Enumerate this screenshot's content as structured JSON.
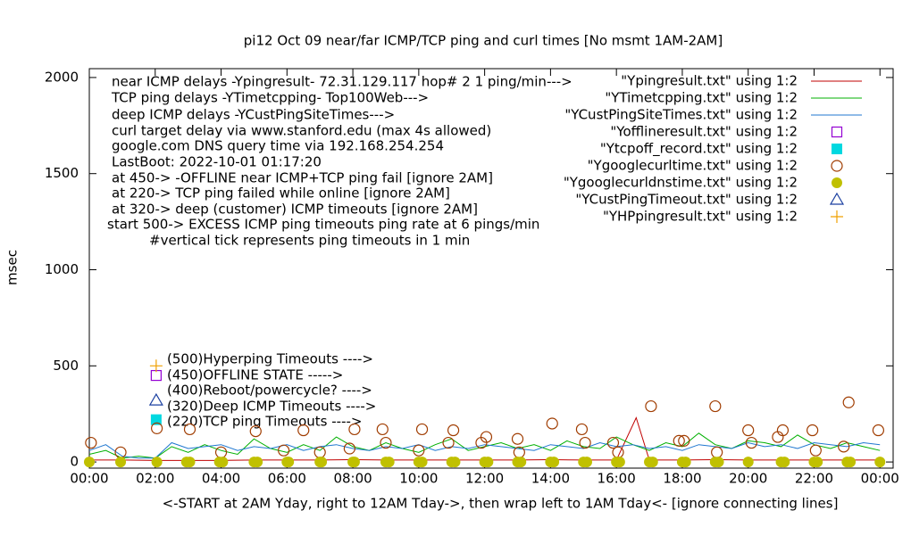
{
  "chart_data": {
    "type": "line",
    "title": "pi12 Oct 09  near/far ICMP/TCP ping and curl times [No msmt 1AM-2AM]",
    "xlabel": "<-START at 2AM Yday, right to 12AM Tday->, then wrap left to 1AM Tday<- [ignore connecting lines]",
    "ylabel": "msec",
    "xlim": [
      0,
      24.4
    ],
    "ylim": [
      -32,
      2046
    ],
    "xticks": [
      {
        "value": 0,
        "label": "00:00"
      },
      {
        "value": 2,
        "label": "02:00"
      },
      {
        "value": 4,
        "label": "04:00"
      },
      {
        "value": 6,
        "label": "06:00"
      },
      {
        "value": 8,
        "label": "08:00"
      },
      {
        "value": 10,
        "label": "10:00"
      },
      {
        "value": 12,
        "label": "12:00"
      },
      {
        "value": 14,
        "label": "14:00"
      },
      {
        "value": 16,
        "label": "16:00"
      },
      {
        "value": 18,
        "label": "18:00"
      },
      {
        "value": 20,
        "label": "20:00"
      },
      {
        "value": 22,
        "label": "22:00"
      },
      {
        "value": 24,
        "label": "00:00"
      }
    ],
    "yticks": [
      0,
      500,
      1000,
      1500,
      2000
    ],
    "legend": "top-right",
    "annotations": [
      "near ICMP delays -Ypingresult- 72.31.129.117 hop# 2  1 ping/min--->",
      "TCP ping delays -YTimetcpping- Top100Web--->",
      "deep ICMP delays -YCustPingSiteTimes--->",
      "curl target delay via www.stanford.edu (max 4s allowed)",
      "google.com DNS query time via 192.168.254.254",
      "LastBoot: 2022-10-01 01:17:20",
      "at 450-> -OFFLINE near ICMP+TCP ping fail [ignore 2AM]",
      "at 220-> TCP ping failed while online [ignore 2AM]",
      "at 320-> deep (customer) ICMP timeouts [ignore 2AM]",
      "start 500-> EXCESS ICMP ping timeouts ping rate at 6 pings/min",
      "#vertical tick represents ping timeouts in 1 min",
      "(500)Hyperping Timeouts ---->",
      "(450)OFFLINE STATE ----->",
      "(400)Reboot/powercycle? ---->",
      "(320)Deep ICMP Timeouts ---->",
      "(220)TCP ping Timeouts ---->"
    ],
    "series": [
      {
        "name": "\"Ypingresult.txt\" using 1:2",
        "color": "#c00000",
        "style": "line",
        "x": [
          0,
          1,
          2,
          3,
          4,
          5,
          6,
          7,
          8,
          9,
          10,
          11,
          12,
          13,
          14,
          15,
          16,
          16.6,
          17,
          18,
          19,
          20,
          21,
          22,
          23,
          24
        ],
        "values": [
          10,
          10,
          8,
          8,
          8,
          10,
          10,
          10,
          12,
          10,
          10,
          10,
          10,
          10,
          12,
          10,
          10,
          230,
          10,
          10,
          12,
          10,
          10,
          10,
          10,
          10
        ]
      },
      {
        "name": "\"YTimetcpping.txt\" using 1:2",
        "color": "#00b000",
        "style": "line",
        "x": [
          0,
          0.5,
          1,
          1.5,
          2,
          2.5,
          3,
          3.5,
          4,
          4.5,
          5,
          5.5,
          6,
          6.5,
          7,
          7.5,
          8,
          8.5,
          9,
          9.5,
          10,
          10.5,
          11,
          11.5,
          12,
          12.5,
          13,
          13.5,
          14,
          14.5,
          15,
          15.5,
          16,
          16.5,
          17,
          17.5,
          18,
          18.5,
          19,
          19.5,
          20,
          20.5,
          21,
          21.5,
          22,
          22.5,
          23,
          23.5,
          24
        ],
        "values": [
          40,
          60,
          20,
          30,
          20,
          80,
          50,
          90,
          60,
          40,
          120,
          70,
          50,
          90,
          60,
          130,
          80,
          60,
          100,
          70,
          50,
          90,
          120,
          60,
          80,
          100,
          70,
          90,
          60,
          110,
          80,
          70,
          130,
          90,
          60,
          100,
          80,
          150,
          90,
          70,
          110,
          100,
          80,
          140,
          90,
          70,
          100,
          80,
          60
        ]
      },
      {
        "name": "\"YCustPingSiteTimes.txt\" using 1:2",
        "color": "#1f77d0",
        "style": "line",
        "x": [
          0,
          0.5,
          1,
          1.5,
          2,
          2.5,
          3,
          3.5,
          4,
          4.5,
          5,
          5.5,
          6,
          6.5,
          7,
          7.5,
          8,
          8.5,
          9,
          9.5,
          10,
          10.5,
          11,
          11.5,
          12,
          12.5,
          13,
          13.5,
          14,
          14.5,
          15,
          15.5,
          16,
          16.5,
          17,
          17.5,
          18,
          18.5,
          19,
          19.5,
          20,
          20.5,
          21,
          21.5,
          22,
          22.5,
          23,
          23.5,
          24
        ],
        "values": [
          60,
          90,
          30,
          20,
          20,
          100,
          70,
          80,
          90,
          60,
          80,
          70,
          90,
          60,
          80,
          90,
          70,
          60,
          80,
          70,
          90,
          60,
          80,
          70,
          90,
          80,
          70,
          60,
          90,
          80,
          70,
          100,
          80,
          90,
          70,
          80,
          60,
          90,
          80,
          70,
          100,
          80,
          90,
          70,
          100,
          90,
          80,
          100,
          90
        ]
      },
      {
        "name": "\"Yofflineresult.txt\" using 1:2",
        "color": "#9400d3",
        "style": "points",
        "marker": "square-open",
        "x": [
          2.03
        ],
        "values": [
          450
        ]
      },
      {
        "name": "\"Ytcpoff_record.txt\" using 1:2",
        "color": "#00d8e0",
        "style": "points",
        "marker": "square-filled",
        "x": [
          2.03
        ],
        "values": [
          220
        ]
      },
      {
        "name": "\"Ygooglecurltime.txt\" using 1:2",
        "color": "#a03c00",
        "style": "points",
        "marker": "circle-open",
        "x": [
          0.05,
          0.95,
          2.05,
          3.05,
          4.0,
          5.05,
          5.9,
          6.5,
          7.0,
          7.9,
          8.05,
          8.9,
          9.0,
          10.0,
          10.1,
          10.9,
          11.05,
          11.9,
          12.05,
          13.0,
          13.05,
          14.05,
          14.95,
          15.05,
          15.9,
          16.05,
          17.05,
          17.9,
          18.05,
          19.0,
          19.05,
          20.0,
          20.1,
          20.9,
          21.05,
          21.95,
          22.05,
          22.9,
          23.05,
          23.95
        ],
        "values": [
          100,
          50,
          175,
          170,
          50,
          160,
          60,
          165,
          50,
          70,
          170,
          170,
          100,
          60,
          170,
          100,
          165,
          100,
          130,
          120,
          50,
          200,
          170,
          100,
          100,
          50,
          290,
          110,
          110,
          290,
          50,
          165,
          100,
          130,
          165,
          165,
          60,
          80,
          310,
          165
        ]
      },
      {
        "name": "\"Ygooglecurldnstime.txt\" using 1:2",
        "color": "#c0c000",
        "style": "points",
        "marker": "circle-filled",
        "x": [
          0,
          0.95,
          2.05,
          2.95,
          3.05,
          3.95,
          4.05,
          5.0,
          5.1,
          6.0,
          6.05,
          7.0,
          7.05,
          8.0,
          8.05,
          9.0,
          9.1,
          10.0,
          10.1,
          11.0,
          11.1,
          12.0,
          12.1,
          13.0,
          13.1,
          14.0,
          14.1,
          15.0,
          15.1,
          16.0,
          16.1,
          17.0,
          17.1,
          18.0,
          18.1,
          19.0,
          19.1,
          20.0,
          21.0,
          21.1,
          22.0,
          22.1,
          23.0,
          23.1,
          24.0
        ],
        "values": [
          0,
          0,
          0,
          0,
          0,
          0,
          0,
          0,
          0,
          0,
          0,
          0,
          0,
          0,
          0,
          0,
          0,
          0,
          0,
          0,
          0,
          0,
          0,
          0,
          0,
          0,
          0,
          0,
          0,
          0,
          0,
          0,
          0,
          0,
          0,
          0,
          0,
          0,
          0,
          0,
          0,
          0,
          0,
          0,
          0
        ]
      },
      {
        "name": "\"YCustPingTimeout.txt\" using 1:2",
        "color": "#1a3fa0",
        "style": "points",
        "marker": "triangle-open",
        "x": [
          2.03
        ],
        "values": [
          320
        ]
      },
      {
        "name": "\"YHPpingresult.txt\" using 1:2",
        "color": "#f0a000",
        "style": "points",
        "marker": "plus",
        "x": [
          2.03
        ],
        "values": [
          500
        ]
      }
    ]
  }
}
